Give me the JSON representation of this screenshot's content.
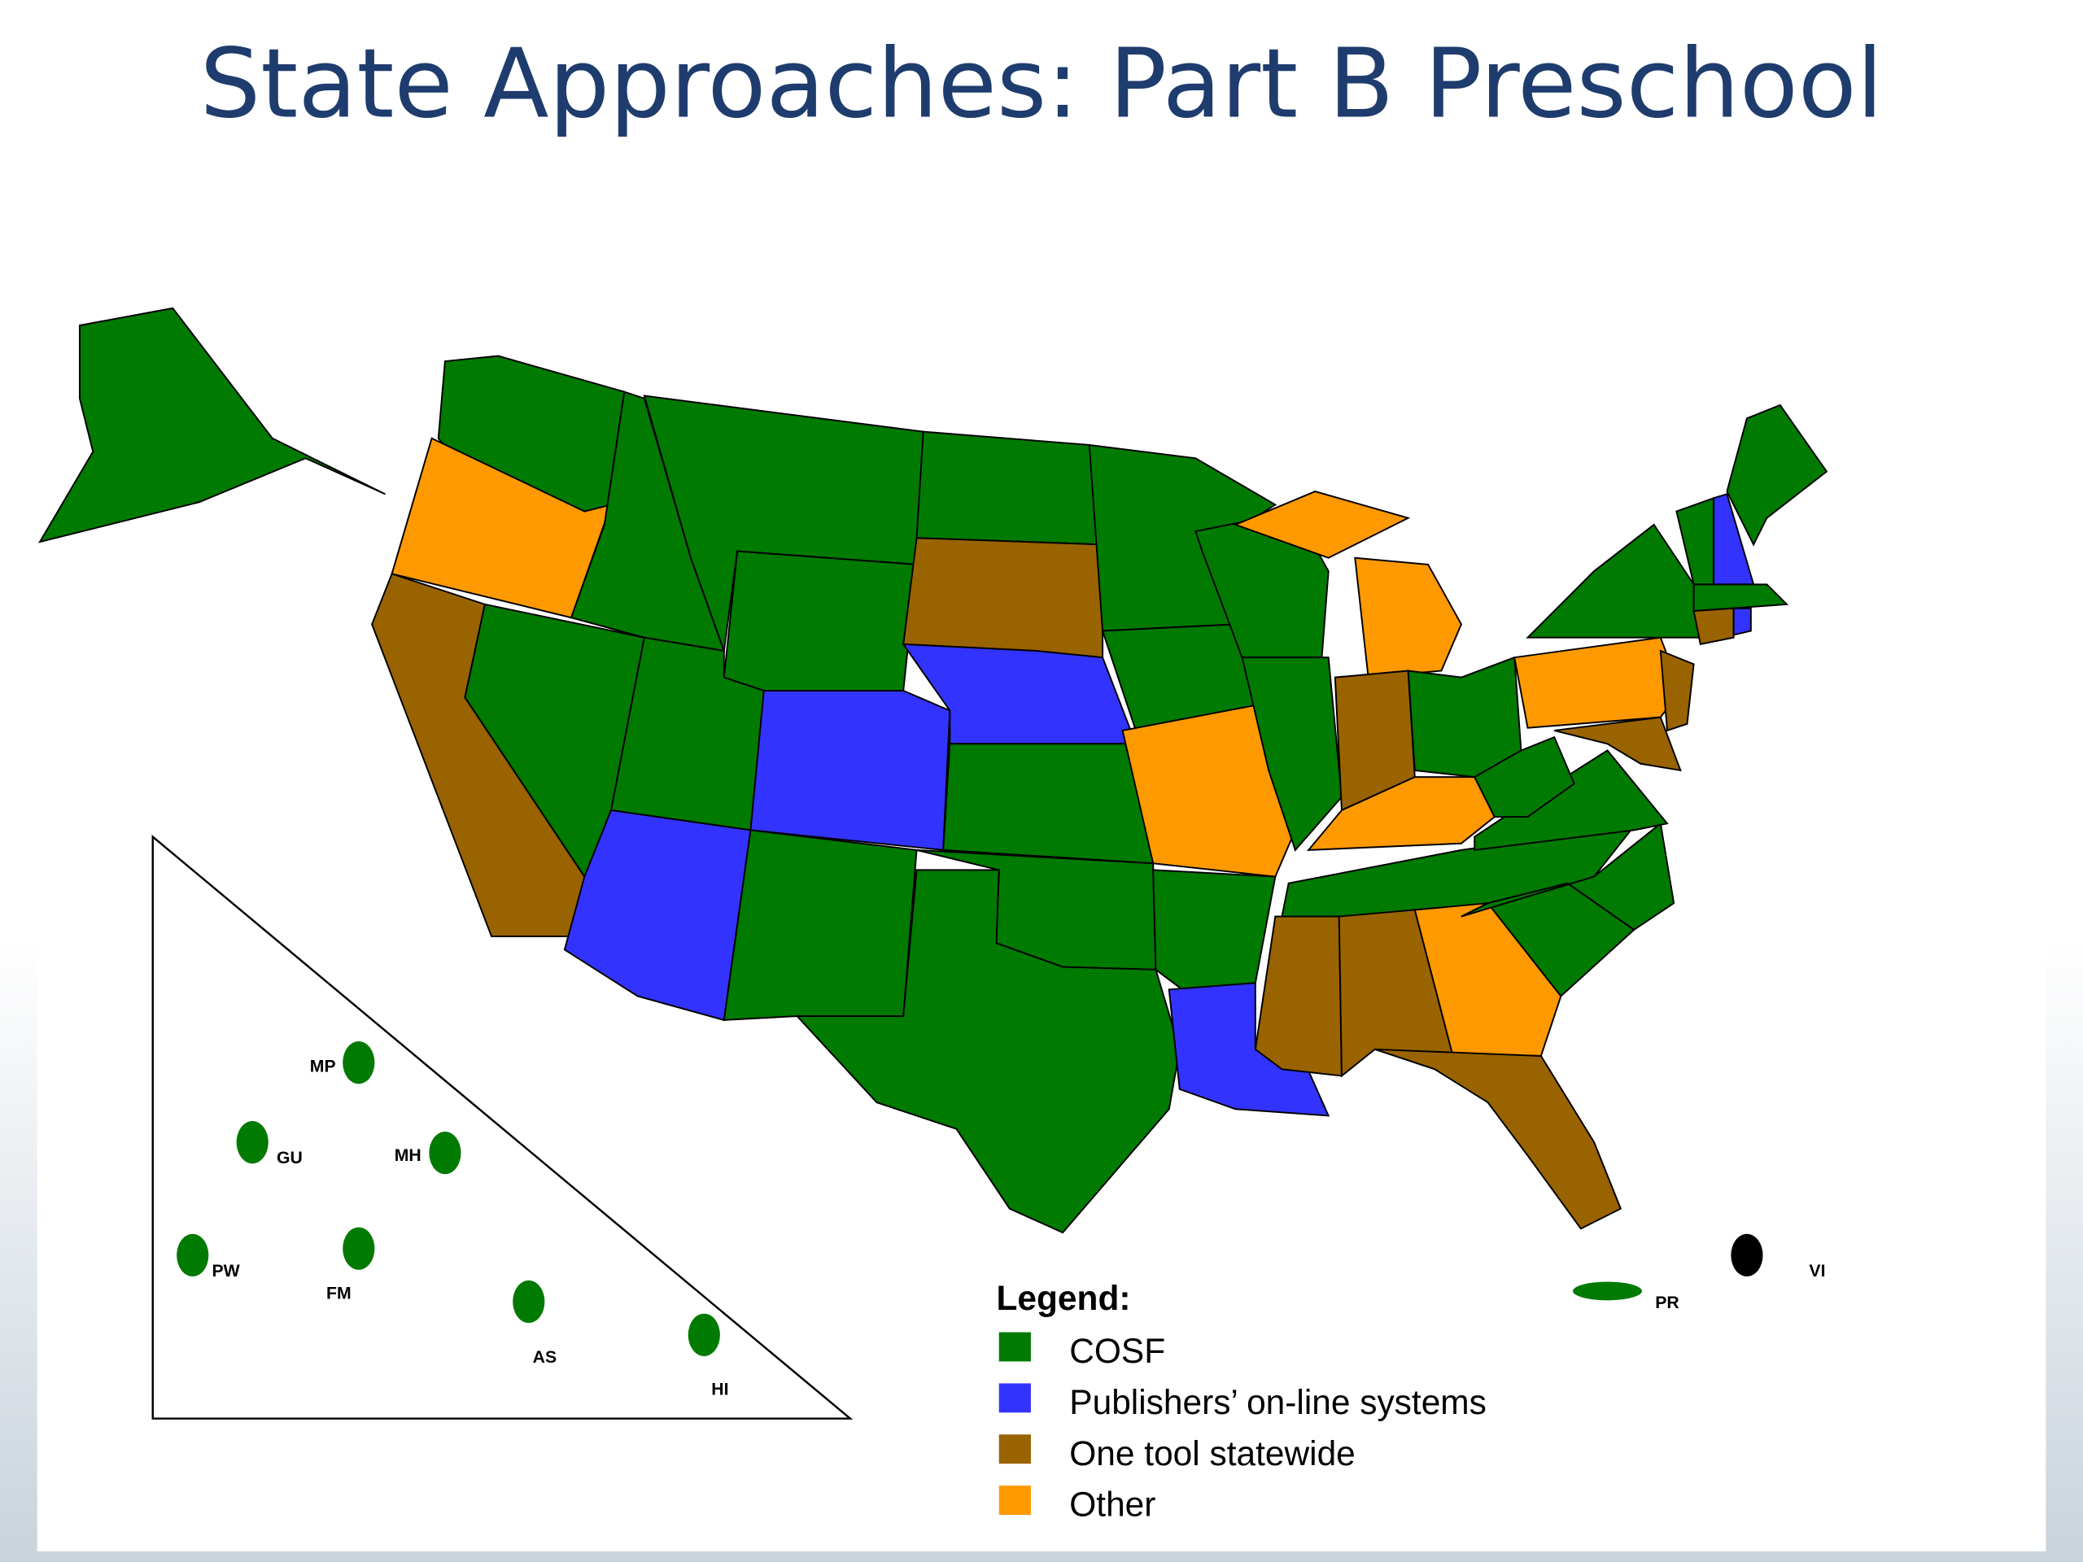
{
  "title": "State Approaches: Part B Preschool",
  "legend": {
    "title": "Legend:",
    "items": [
      {
        "label": "COSF",
        "color": "#007a00"
      },
      {
        "label": "Publishers’ on-line systems",
        "color": "#3333ff"
      },
      {
        "label": "One tool statewide",
        "color": "#996300"
      },
      {
        "label": "Other",
        "color": "#ff9900"
      }
    ]
  },
  "territories": [
    "MP",
    "GU",
    "MH",
    "PW",
    "FM",
    "AS",
    "HI",
    "PR",
    "VI"
  ]
}
